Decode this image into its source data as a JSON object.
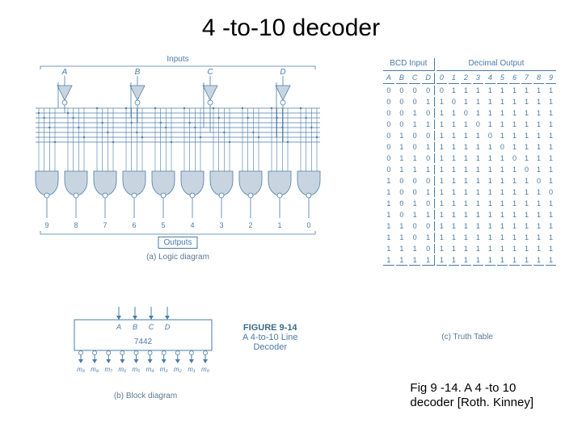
{
  "title": "4 -to-10 decoder",
  "logic": {
    "inputs_label": "Inputs",
    "outputs_label": "Outputs",
    "caption": "(a) Logic diagram",
    "input_labels": [
      "A",
      "B",
      "C",
      "D"
    ],
    "output_labels": [
      "9",
      "8",
      "7",
      "6",
      "5",
      "4",
      "3",
      "2",
      "1",
      "0"
    ],
    "colors": {
      "stroke": "#4a7ba8",
      "fill_inv": "#c8d5e0",
      "fill_gate": "#c8d5e0",
      "text": "#4a7ba8"
    },
    "inverter_size": 18,
    "gate_width": 28,
    "gate_height": 30,
    "bubble_radius": 3,
    "wire_width": 0.8
  },
  "block": {
    "caption": "(b) Block diagram",
    "inputs": [
      "A",
      "B",
      "C",
      "D"
    ],
    "chip_label": "7442",
    "outputs": [
      "m₉",
      "m₈",
      "m₇",
      "m₆",
      "m₅",
      "m₄",
      "m₃",
      "m₂",
      "m₁",
      "m₀"
    ]
  },
  "figure": {
    "number": "FIGURE 9-14",
    "text_line1": "A 4-to-10 Line",
    "text_line2": "Decoder"
  },
  "truth": {
    "caption": "(c) Truth Table",
    "input_header": "BCD Input",
    "output_header": "Decimal Output",
    "input_cols": [
      "A",
      "B",
      "C",
      "D"
    ],
    "output_cols": [
      "0",
      "1",
      "2",
      "3",
      "4",
      "5",
      "6",
      "7",
      "8",
      "9"
    ],
    "rows": [
      {
        "in": [
          "0",
          "0",
          "0",
          "0"
        ],
        "out": [
          "0",
          "1",
          "1",
          "1",
          "1",
          "1",
          "1",
          "1",
          "1",
          "1"
        ]
      },
      {
        "in": [
          "0",
          "0",
          "0",
          "1"
        ],
        "out": [
          "1",
          "0",
          "1",
          "1",
          "1",
          "1",
          "1",
          "1",
          "1",
          "1"
        ]
      },
      {
        "in": [
          "0",
          "0",
          "1",
          "0"
        ],
        "out": [
          "1",
          "1",
          "0",
          "1",
          "1",
          "1",
          "1",
          "1",
          "1",
          "1"
        ]
      },
      {
        "in": [
          "0",
          "0",
          "1",
          "1"
        ],
        "out": [
          "1",
          "1",
          "1",
          "0",
          "1",
          "1",
          "1",
          "1",
          "1",
          "1"
        ]
      },
      {
        "in": [
          "0",
          "1",
          "0",
          "0"
        ],
        "out": [
          "1",
          "1",
          "1",
          "1",
          "0",
          "1",
          "1",
          "1",
          "1",
          "1"
        ]
      },
      {
        "in": [
          "0",
          "1",
          "0",
          "1"
        ],
        "out": [
          "1",
          "1",
          "1",
          "1",
          "1",
          "0",
          "1",
          "1",
          "1",
          "1"
        ]
      },
      {
        "in": [
          "0",
          "1",
          "1",
          "0"
        ],
        "out": [
          "1",
          "1",
          "1",
          "1",
          "1",
          "1",
          "0",
          "1",
          "1",
          "1"
        ]
      },
      {
        "in": [
          "0",
          "1",
          "1",
          "1"
        ],
        "out": [
          "1",
          "1",
          "1",
          "1",
          "1",
          "1",
          "1",
          "0",
          "1",
          "1"
        ]
      },
      {
        "in": [
          "1",
          "0",
          "0",
          "0"
        ],
        "out": [
          "1",
          "1",
          "1",
          "1",
          "1",
          "1",
          "1",
          "1",
          "0",
          "1"
        ]
      },
      {
        "in": [
          "1",
          "0",
          "0",
          "1"
        ],
        "out": [
          "1",
          "1",
          "1",
          "1",
          "1",
          "1",
          "1",
          "1",
          "1",
          "0"
        ]
      },
      {
        "in": [
          "1",
          "0",
          "1",
          "0"
        ],
        "out": [
          "1",
          "1",
          "1",
          "1",
          "1",
          "1",
          "1",
          "1",
          "1",
          "1"
        ]
      },
      {
        "in": [
          "1",
          "0",
          "1",
          "1"
        ],
        "out": [
          "1",
          "1",
          "1",
          "1",
          "1",
          "1",
          "1",
          "1",
          "1",
          "1"
        ]
      },
      {
        "in": [
          "1",
          "1",
          "0",
          "0"
        ],
        "out": [
          "1",
          "1",
          "1",
          "1",
          "1",
          "1",
          "1",
          "1",
          "1",
          "1"
        ]
      },
      {
        "in": [
          "1",
          "1",
          "0",
          "1"
        ],
        "out": [
          "1",
          "1",
          "1",
          "1",
          "1",
          "1",
          "1",
          "1",
          "1",
          "1"
        ]
      },
      {
        "in": [
          "1",
          "1",
          "1",
          "0"
        ],
        "out": [
          "1",
          "1",
          "1",
          "1",
          "1",
          "1",
          "1",
          "1",
          "1",
          "1"
        ]
      },
      {
        "in": [
          "1",
          "1",
          "1",
          "1"
        ],
        "out": [
          "1",
          "1",
          "1",
          "1",
          "1",
          "1",
          "1",
          "1",
          "1",
          "1"
        ]
      }
    ]
  },
  "citation": {
    "line1": "Fig 9 -14. A 4 -to 10",
    "line2": "decoder [Roth. Kinney]"
  }
}
